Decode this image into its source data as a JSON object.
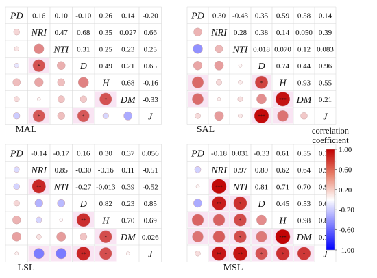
{
  "chart_data": {
    "type": "heatmap",
    "subtype": "correlation-matrix",
    "variables": [
      "PD",
      "NRI",
      "NTI",
      "D",
      "H",
      "DM",
      "J"
    ],
    "colorbar": {
      "title_line1": "correlation",
      "title_line2": "coefficient",
      "range": [
        -1.0,
        1.0
      ],
      "ticks": [
        {
          "value": 1.0,
          "label": "1.00"
        },
        {
          "value": 0.6,
          "label": "0.60"
        },
        {
          "value": 0.2,
          "label": "0.20"
        },
        {
          "value": -0.2,
          "label": "-0.20"
        },
        {
          "value": -0.6,
          "label": "-0.60"
        },
        {
          "value": -1.0,
          "label": "-1.00"
        }
      ],
      "colors": {
        "negative": "#0000ff",
        "zero": "#ffffff",
        "positive": "#c00000"
      }
    },
    "panels": [
      {
        "name": "MAL",
        "upper": [
          [
            "",
            "0.16",
            "0.10",
            "-0.10",
            "0.26",
            "0.14",
            "-0.20"
          ],
          [
            "",
            "",
            "0.47",
            "0.68",
            "0.35",
            "0.027",
            "0.66"
          ],
          [
            "",
            "",
            "",
            "0.31",
            "0.25",
            "0.23",
            "0.25"
          ],
          [
            "",
            "",
            "",
            "",
            "0.49",
            "0.21",
            "0.65"
          ],
          [
            "",
            "",
            "",
            "",
            "",
            "0.68",
            "-0.16"
          ],
          [
            "",
            "",
            "",
            "",
            "",
            "",
            "-0.33"
          ],
          [
            "",
            "",
            "",
            "",
            "",
            "",
            ""
          ]
        ],
        "lower": [
          {
            "row": 1,
            "col": 0,
            "value": 0.16,
            "sig": ""
          },
          {
            "row": 2,
            "col": 0,
            "value": 0.1,
            "sig": ""
          },
          {
            "row": 2,
            "col": 1,
            "value": 0.47,
            "sig": ""
          },
          {
            "row": 3,
            "col": 0,
            "value": -0.1,
            "sig": ""
          },
          {
            "row": 3,
            "col": 1,
            "value": 0.68,
            "sig": "*"
          },
          {
            "row": 3,
            "col": 2,
            "value": 0.31,
            "sig": ""
          },
          {
            "row": 4,
            "col": 0,
            "value": 0.26,
            "sig": ""
          },
          {
            "row": 4,
            "col": 1,
            "value": 0.35,
            "sig": ""
          },
          {
            "row": 4,
            "col": 2,
            "value": 0.25,
            "sig": ""
          },
          {
            "row": 4,
            "col": 3,
            "value": 0.49,
            "sig": ""
          },
          {
            "row": 5,
            "col": 0,
            "value": 0.14,
            "sig": ""
          },
          {
            "row": 5,
            "col": 1,
            "value": 0.027,
            "sig": ""
          },
          {
            "row": 5,
            "col": 2,
            "value": 0.23,
            "sig": ""
          },
          {
            "row": 5,
            "col": 3,
            "value": 0.21,
            "sig": ""
          },
          {
            "row": 5,
            "col": 4,
            "value": 0.68,
            "sig": "*"
          },
          {
            "row": 6,
            "col": 0,
            "value": -0.2,
            "sig": ""
          },
          {
            "row": 6,
            "col": 1,
            "value": 0.66,
            "sig": "*"
          },
          {
            "row": 6,
            "col": 2,
            "value": 0.25,
            "sig": ""
          },
          {
            "row": 6,
            "col": 3,
            "value": 0.65,
            "sig": "*"
          },
          {
            "row": 6,
            "col": 4,
            "value": -0.16,
            "sig": ""
          },
          {
            "row": 6,
            "col": 5,
            "value": -0.33,
            "sig": ""
          }
        ]
      },
      {
        "name": "SAL",
        "upper": [
          [
            "",
            "0.30",
            "-0.43",
            "0.35",
            "0.59",
            "0.58",
            "0.14"
          ],
          [
            "",
            "",
            "0.28",
            "0.38",
            "0.14",
            "0.050",
            "0.39"
          ],
          [
            "",
            "",
            "",
            "0.018",
            "0.070",
            "0.12",
            "0.083"
          ],
          [
            "",
            "",
            "",
            "",
            "0.74",
            "0.44",
            "0.96"
          ],
          [
            "",
            "",
            "",
            "",
            "",
            "0.93",
            "0.55"
          ],
          [
            "",
            "",
            "",
            "",
            "",
            "",
            "0.21"
          ],
          [
            "",
            "",
            "",
            "",
            "",
            "",
            ""
          ]
        ],
        "lower": [
          {
            "row": 1,
            "col": 0,
            "value": 0.3,
            "sig": ""
          },
          {
            "row": 2,
            "col": 0,
            "value": -0.43,
            "sig": ""
          },
          {
            "row": 2,
            "col": 1,
            "value": 0.28,
            "sig": ""
          },
          {
            "row": 3,
            "col": 0,
            "value": 0.35,
            "sig": ""
          },
          {
            "row": 3,
            "col": 1,
            "value": 0.38,
            "sig": ""
          },
          {
            "row": 3,
            "col": 2,
            "value": 0.018,
            "sig": ""
          },
          {
            "row": 4,
            "col": 0,
            "value": 0.59,
            "sig": ""
          },
          {
            "row": 4,
            "col": 1,
            "value": 0.14,
            "sig": ""
          },
          {
            "row": 4,
            "col": 2,
            "value": 0.07,
            "sig": ""
          },
          {
            "row": 4,
            "col": 3,
            "value": 0.74,
            "sig": "*"
          },
          {
            "row": 5,
            "col": 0,
            "value": 0.58,
            "sig": ""
          },
          {
            "row": 5,
            "col": 1,
            "value": 0.05,
            "sig": ""
          },
          {
            "row": 5,
            "col": 2,
            "value": 0.12,
            "sig": ""
          },
          {
            "row": 5,
            "col": 3,
            "value": 0.44,
            "sig": ""
          },
          {
            "row": 5,
            "col": 4,
            "value": 0.93,
            "sig": "***"
          },
          {
            "row": 6,
            "col": 0,
            "value": 0.14,
            "sig": ""
          },
          {
            "row": 6,
            "col": 1,
            "value": 0.39,
            "sig": ""
          },
          {
            "row": 6,
            "col": 2,
            "value": 0.083,
            "sig": ""
          },
          {
            "row": 6,
            "col": 3,
            "value": 0.96,
            "sig": "***"
          },
          {
            "row": 6,
            "col": 4,
            "value": 0.55,
            "sig": ""
          },
          {
            "row": 6,
            "col": 5,
            "value": 0.21,
            "sig": ""
          }
        ]
      },
      {
        "name": "LSL",
        "upper": [
          [
            "",
            "-0.14",
            "-0.17",
            "0.16",
            "0.30",
            "0.37",
            "0.056"
          ],
          [
            "",
            "",
            "0.85",
            "-0.30",
            "-0.16",
            "0.11",
            "-0.51"
          ],
          [
            "",
            "",
            "",
            "-0.27",
            "-0.013",
            "0.39",
            "-0.52"
          ],
          [
            "",
            "",
            "",
            "",
            "0.82",
            "0.23",
            "0.85"
          ],
          [
            "",
            "",
            "",
            "",
            "",
            "0.70",
            "0.69"
          ],
          [
            "",
            "",
            "",
            "",
            "",
            "",
            "0.026"
          ],
          [
            "",
            "",
            "",
            "",
            "",
            "",
            ""
          ]
        ],
        "lower": [
          {
            "row": 1,
            "col": 0,
            "value": -0.14,
            "sig": ""
          },
          {
            "row": 2,
            "col": 0,
            "value": -0.17,
            "sig": ""
          },
          {
            "row": 2,
            "col": 1,
            "value": 0.85,
            "sig": "**"
          },
          {
            "row": 3,
            "col": 0,
            "value": 0.16,
            "sig": ""
          },
          {
            "row": 3,
            "col": 1,
            "value": -0.3,
            "sig": ""
          },
          {
            "row": 3,
            "col": 2,
            "value": -0.27,
            "sig": ""
          },
          {
            "row": 4,
            "col": 0,
            "value": 0.3,
            "sig": ""
          },
          {
            "row": 4,
            "col": 1,
            "value": -0.16,
            "sig": ""
          },
          {
            "row": 4,
            "col": 2,
            "value": -0.013,
            "sig": ""
          },
          {
            "row": 4,
            "col": 3,
            "value": 0.82,
            "sig": "**"
          },
          {
            "row": 5,
            "col": 0,
            "value": 0.37,
            "sig": ""
          },
          {
            "row": 5,
            "col": 1,
            "value": 0.11,
            "sig": ""
          },
          {
            "row": 5,
            "col": 2,
            "value": 0.39,
            "sig": ""
          },
          {
            "row": 5,
            "col": 3,
            "value": 0.23,
            "sig": ""
          },
          {
            "row": 5,
            "col": 4,
            "value": 0.7,
            "sig": "*"
          },
          {
            "row": 6,
            "col": 0,
            "value": 0.056,
            "sig": ""
          },
          {
            "row": 6,
            "col": 1,
            "value": -0.51,
            "sig": ""
          },
          {
            "row": 6,
            "col": 2,
            "value": -0.52,
            "sig": ""
          },
          {
            "row": 6,
            "col": 3,
            "value": 0.85,
            "sig": "**"
          },
          {
            "row": 6,
            "col": 4,
            "value": 0.69,
            "sig": "*"
          },
          {
            "row": 6,
            "col": 5,
            "value": 0.026,
            "sig": ""
          }
        ]
      },
      {
        "name": "MSL",
        "upper": [
          [
            "",
            "-0.18",
            "0.031",
            "-0.33",
            "0.61",
            "0.55",
            "0.13"
          ],
          [
            "",
            "",
            "0.97",
            "0.89",
            "0.62",
            "0.64",
            "0.91"
          ],
          [
            "",
            "",
            "",
            "0.81",
            "0.71",
            "0.70",
            "0.92"
          ],
          [
            "",
            "",
            "",
            "",
            "0.45",
            "0.53",
            "0.67"
          ],
          [
            "",
            "",
            "",
            "",
            "",
            "0.98",
            "0.81"
          ],
          [
            "",
            "",
            "",
            "",
            "",
            "",
            "0.78"
          ],
          [
            "",
            "",
            "",
            "",
            "",
            "",
            ""
          ]
        ],
        "lower": [
          {
            "row": 1,
            "col": 0,
            "value": -0.18,
            "sig": ""
          },
          {
            "row": 2,
            "col": 0,
            "value": 0.031,
            "sig": ""
          },
          {
            "row": 2,
            "col": 1,
            "value": 0.97,
            "sig": "***"
          },
          {
            "row": 3,
            "col": 0,
            "value": -0.33,
            "sig": ""
          },
          {
            "row": 3,
            "col": 1,
            "value": 0.89,
            "sig": "**"
          },
          {
            "row": 3,
            "col": 2,
            "value": 0.81,
            "sig": "*"
          },
          {
            "row": 4,
            "col": 0,
            "value": 0.61,
            "sig": ""
          },
          {
            "row": 4,
            "col": 1,
            "value": 0.62,
            "sig": ""
          },
          {
            "row": 4,
            "col": 2,
            "value": 0.71,
            "sig": "*"
          },
          {
            "row": 4,
            "col": 3,
            "value": 0.45,
            "sig": ""
          },
          {
            "row": 5,
            "col": 0,
            "value": 0.55,
            "sig": ""
          },
          {
            "row": 5,
            "col": 1,
            "value": 0.64,
            "sig": ""
          },
          {
            "row": 5,
            "col": 2,
            "value": 0.7,
            "sig": "*"
          },
          {
            "row": 5,
            "col": 3,
            "value": 0.53,
            "sig": ""
          },
          {
            "row": 5,
            "col": 4,
            "value": 0.98,
            "sig": "***"
          },
          {
            "row": 6,
            "col": 0,
            "value": 0.13,
            "sig": ""
          },
          {
            "row": 6,
            "col": 1,
            "value": 0.91,
            "sig": "**"
          },
          {
            "row": 6,
            "col": 2,
            "value": 0.92,
            "sig": "**"
          },
          {
            "row": 6,
            "col": 3,
            "value": 0.67,
            "sig": "*"
          },
          {
            "row": 6,
            "col": 4,
            "value": 0.81,
            "sig": "*"
          },
          {
            "row": 6,
            "col": 5,
            "value": 0.78,
            "sig": "*"
          }
        ]
      }
    ]
  }
}
